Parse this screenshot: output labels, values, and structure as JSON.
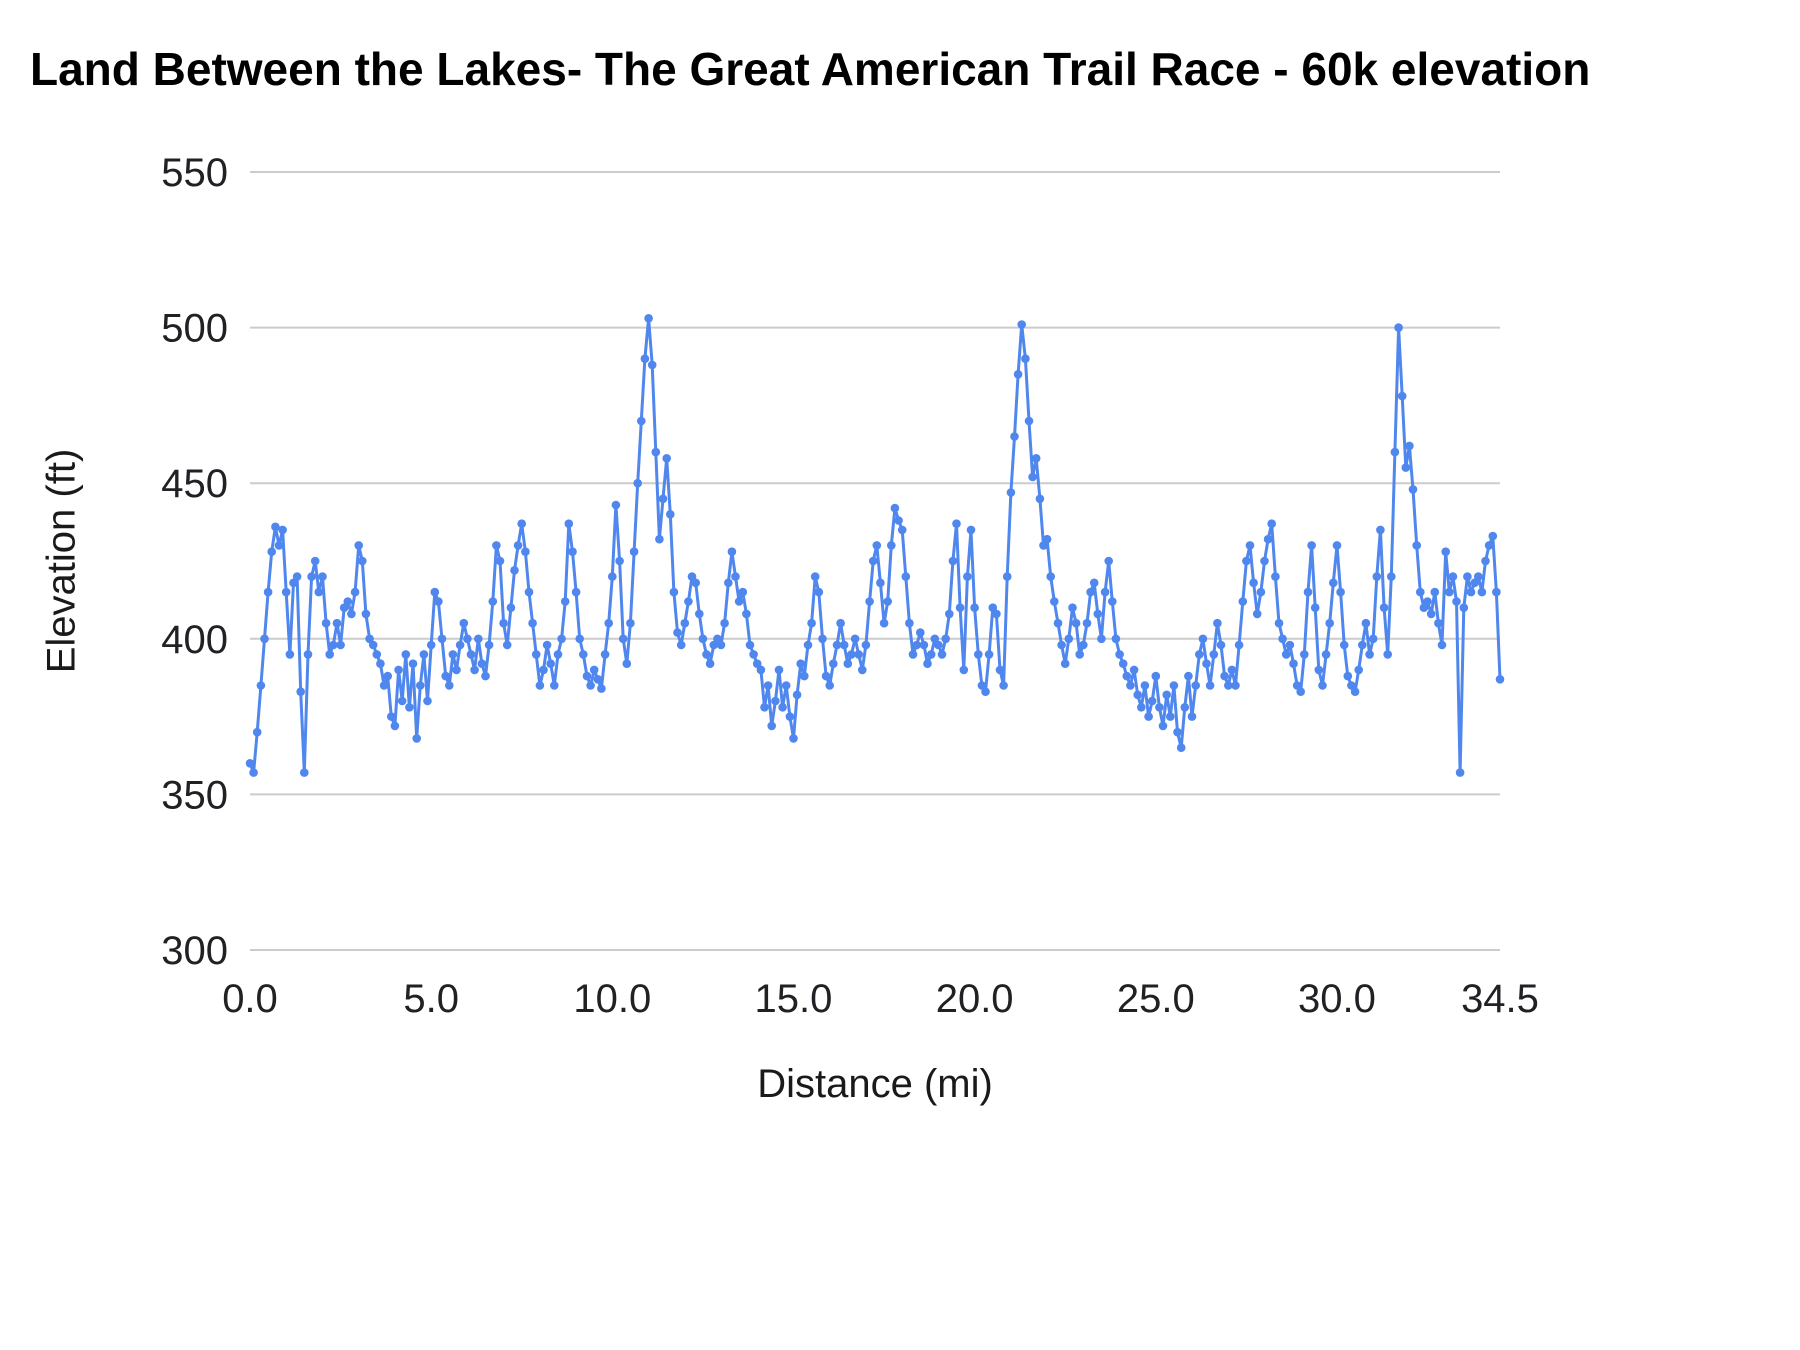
{
  "chart_data": {
    "type": "line",
    "title": "Land Between the Lakes- The Great American Trail Race - 60k elevation",
    "xlabel": "Distance (mi)",
    "ylabel": "Elevation (ft)",
    "xlim": [
      0.0,
      34.5
    ],
    "ylim": [
      300,
      550
    ],
    "x_ticks": [
      0.0,
      5.0,
      10.0,
      15.0,
      20.0,
      25.0,
      30.0,
      34.5
    ],
    "y_ticks": [
      300,
      350,
      400,
      450,
      500,
      550
    ],
    "grid": "horizontal-only",
    "legend": "none",
    "marker": "circle",
    "colors": {
      "line": "#4f87ee",
      "grid": "#cccccc",
      "tick_text": "#202124",
      "title_text": "#000000"
    },
    "x_start": 0.0,
    "x_step": 0.1,
    "values": [
      360,
      357,
      370,
      385,
      400,
      415,
      428,
      436,
      430,
      435,
      415,
      395,
      418,
      420,
      383,
      357,
      395,
      420,
      425,
      415,
      420,
      405,
      395,
      398,
      405,
      398,
      410,
      412,
      408,
      415,
      430,
      425,
      408,
      400,
      398,
      395,
      392,
      385,
      388,
      375,
      372,
      390,
      380,
      395,
      378,
      392,
      368,
      385,
      395,
      380,
      398,
      415,
      412,
      400,
      388,
      385,
      395,
      390,
      398,
      405,
      400,
      395,
      390,
      400,
      392,
      388,
      398,
      412,
      430,
      425,
      405,
      398,
      410,
      422,
      430,
      437,
      428,
      415,
      405,
      395,
      385,
      390,
      398,
      392,
      385,
      395,
      400,
      412,
      437,
      428,
      415,
      400,
      395,
      388,
      385,
      390,
      387,
      384,
      395,
      405,
      420,
      443,
      425,
      400,
      392,
      405,
      428,
      450,
      470,
      490,
      503,
      488,
      460,
      432,
      445,
      458,
      440,
      415,
      402,
      398,
      405,
      412,
      420,
      418,
      408,
      400,
      395,
      392,
      398,
      400,
      398,
      405,
      418,
      428,
      420,
      412,
      415,
      408,
      398,
      395,
      392,
      390,
      378,
      385,
      372,
      380,
      390,
      378,
      385,
      375,
      368,
      382,
      392,
      388,
      398,
      405,
      420,
      415,
      400,
      388,
      385,
      392,
      398,
      405,
      398,
      392,
      395,
      400,
      395,
      390,
      398,
      412,
      425,
      430,
      418,
      405,
      412,
      430,
      442,
      438,
      435,
      420,
      405,
      395,
      398,
      402,
      398,
      392,
      395,
      400,
      398,
      395,
      400,
      408,
      425,
      437,
      410,
      390,
      420,
      435,
      410,
      395,
      385,
      383,
      395,
      410,
      408,
      390,
      385,
      420,
      447,
      465,
      485,
      501,
      490,
      470,
      452,
      458,
      445,
      430,
      432,
      420,
      412,
      405,
      398,
      392,
      400,
      410,
      405,
      395,
      398,
      405,
      415,
      418,
      408,
      400,
      415,
      425,
      412,
      400,
      395,
      392,
      388,
      385,
      390,
      382,
      378,
      385,
      375,
      380,
      388,
      378,
      372,
      382,
      375,
      385,
      370,
      365,
      378,
      388,
      375,
      385,
      395,
      400,
      392,
      385,
      395,
      405,
      398,
      388,
      385,
      390,
      385,
      398,
      412,
      425,
      430,
      418,
      408,
      415,
      425,
      432,
      437,
      420,
      405,
      400,
      395,
      398,
      392,
      385,
      383,
      395,
      415,
      430,
      410,
      390,
      385,
      395,
      405,
      418,
      430,
      415,
      398,
      388,
      385,
      383,
      390,
      398,
      405,
      395,
      400,
      420,
      435,
      410,
      395,
      420,
      460,
      500,
      478,
      455,
      462,
      448,
      430,
      415,
      410,
      412,
      408,
      415,
      405,
      398,
      428,
      415,
      420,
      412,
      357,
      410,
      420,
      415,
      418,
      420,
      415,
      425,
      430,
      433,
      415,
      387
    ]
  }
}
